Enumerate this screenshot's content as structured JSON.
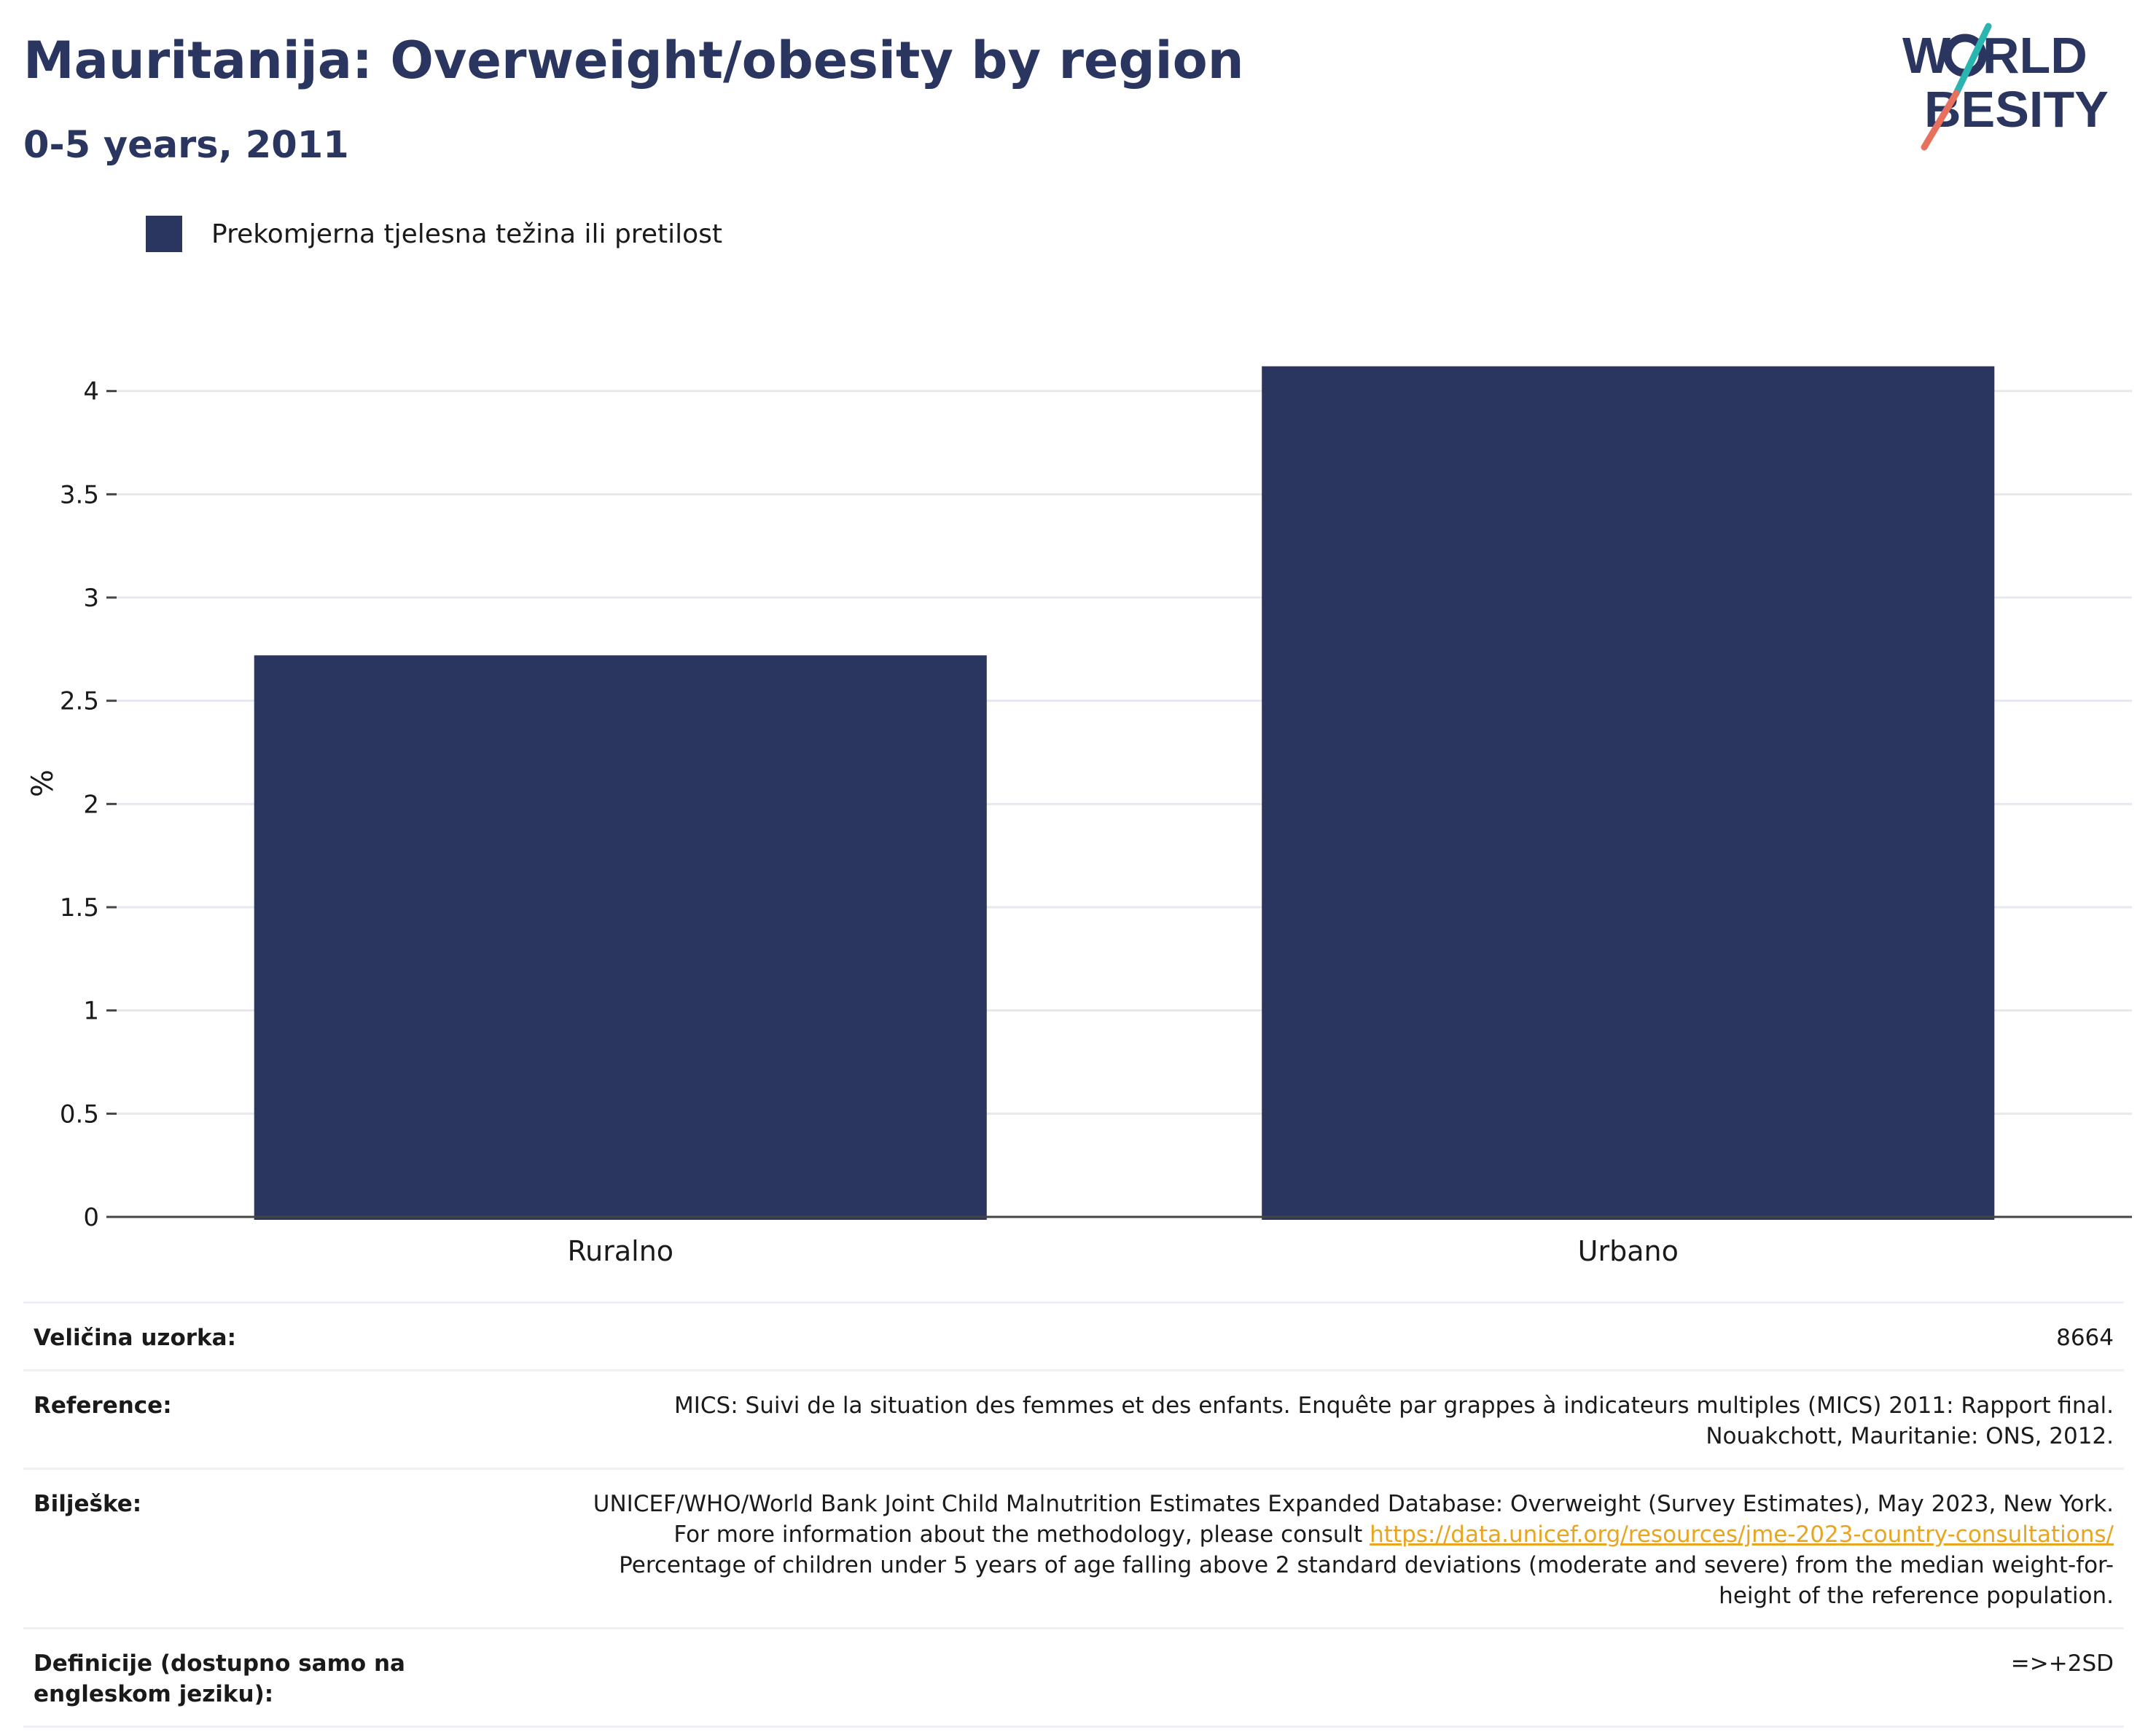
{
  "header": {
    "title": "Mauritanija: Overweight/obesity by region",
    "subtitle": "0-5 years, 2011"
  },
  "logo": {
    "line1": "W RLD",
    "line2": "BESITY",
    "accent_teal": "#2bb5b0",
    "accent_coral": "#e8705e"
  },
  "legend": {
    "label": "Prekomjerna tjelesna težina ili pretilost",
    "color": "#2a3660"
  },
  "chart_data": {
    "type": "bar",
    "categories": [
      "Ruralno",
      "Urbano"
    ],
    "series": [
      {
        "name": "Prekomjerna tjelesna težina ili pretilost",
        "values": [
          2.72,
          4.12
        ],
        "color": "#2a3660"
      }
    ],
    "ylabel": "%",
    "xlabel": "",
    "ylim": [
      0,
      4.2
    ],
    "yticks": [
      0,
      0.5,
      1,
      1.5,
      2,
      2.5,
      3,
      3.5,
      4
    ],
    "ytick_labels": [
      "0",
      "0.5",
      "1",
      "1.5",
      "2",
      "2.5",
      "3",
      "3.5",
      "4"
    ],
    "grid": true
  },
  "info": {
    "sample_label": "Veličina uzorka:",
    "sample_value": "8664",
    "reference_label": "Reference:",
    "reference_value": "MICS: Suivi de la situation des femmes et des enfants. Enquête par grappes à indicateurs multiples (MICS) 2011: Rapport final. Nouakchott, Mauritanie: ONS, 2012.",
    "notes_label": "Bilješke:",
    "notes_text1": "UNICEF/WHO/World Bank Joint Child Malnutrition Estimates Expanded Database: Overweight (Survey Estimates), May 2023, New York. For more information about the methodology, please consult ",
    "notes_link": "https://data.unicef.org/resources/jme-2023-country-consultations/",
    "notes_text2": " Percentage of children under 5 years of age falling above 2 standard deviations (moderate and severe) from the median weight-for-height of the reference population.",
    "definitions_label": "Definicije (dostupno samo na engleskom jeziku):",
    "definitions_value": "=>+2SD"
  }
}
